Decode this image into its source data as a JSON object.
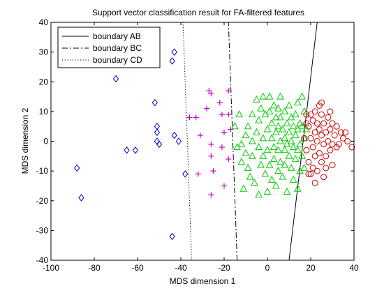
{
  "chart_data": {
    "type": "scatter",
    "title": "Support vector classification result for FA-filtered features",
    "xlabel": "MDS dimension 1",
    "ylabel": "MDS dimension 2",
    "xlim": [
      -100,
      40
    ],
    "ylim": [
      -40,
      40
    ],
    "xticks": [
      -100,
      -80,
      -60,
      -40,
      -20,
      0,
      20,
      40
    ],
    "yticks": [
      -40,
      -30,
      -20,
      -10,
      0,
      10,
      20,
      30,
      40
    ],
    "grid": false,
    "legend_position": "top-left",
    "lines": [
      {
        "name": "boundary AB",
        "style": "solid",
        "color": "#000000",
        "points": [
          [
            10,
            -40
          ],
          [
            23,
            40
          ]
        ]
      },
      {
        "name": "boundary BC",
        "style": "dashdot",
        "color": "#000000",
        "points": [
          [
            -14,
            -40
          ],
          [
            -18,
            40
          ]
        ]
      },
      {
        "name": "boundary CD",
        "style": "dotted",
        "color": "#000000",
        "points": [
          [
            -35,
            -40
          ],
          [
            -39,
            40
          ]
        ]
      }
    ],
    "series": [
      {
        "marker": "diamond",
        "color": "#0000cc",
        "points": [
          [
            -88,
            -9
          ],
          [
            -86,
            -19
          ],
          [
            -70,
            21
          ],
          [
            -65,
            -3
          ],
          [
            -61,
            -3
          ],
          [
            -52,
            13
          ],
          [
            -51,
            5
          ],
          [
            -51,
            3
          ],
          [
            -51,
            0
          ],
          [
            -50,
            -1
          ],
          [
            -44,
            27
          ],
          [
            -43,
            30
          ],
          [
            -43,
            2
          ],
          [
            -41,
            0
          ],
          [
            -38,
            -11
          ],
          [
            -44,
            -32
          ]
        ]
      },
      {
        "marker": "plus",
        "color": "#cc00cc",
        "points": [
          [
            -36,
            8
          ],
          [
            -33,
            8
          ],
          [
            -32,
            -11
          ],
          [
            -31,
            2
          ],
          [
            -27,
            17
          ],
          [
            -26,
            16
          ],
          [
            -28,
            11
          ],
          [
            -26,
            -1
          ],
          [
            -26,
            -5
          ],
          [
            -22,
            13
          ],
          [
            -21,
            9
          ],
          [
            -21,
            -2
          ],
          [
            -25,
            -10
          ],
          [
            -20,
            3
          ],
          [
            -18,
            17
          ],
          [
            -18,
            9
          ],
          [
            -18,
            -6
          ],
          [
            -26,
            -18
          ],
          [
            -20,
            -15
          ],
          [
            -17,
            4
          ]
        ]
      },
      {
        "marker": "triangle",
        "color": "#00cc00",
        "points": [
          [
            -13,
            9
          ],
          [
            -12,
            -1
          ],
          [
            -12,
            -7
          ],
          [
            -11,
            -16
          ],
          [
            -10,
            2
          ],
          [
            -10,
            -4
          ],
          [
            -9,
            5
          ],
          [
            -9,
            -9
          ],
          [
            -8,
            -12
          ],
          [
            -7,
            9
          ],
          [
            -7,
            0
          ],
          [
            -7,
            -5
          ],
          [
            -6,
            -14
          ],
          [
            -5,
            14
          ],
          [
            -5,
            3
          ],
          [
            -4,
            7
          ],
          [
            -4,
            -2
          ],
          [
            -4,
            -18
          ],
          [
            -3,
            11
          ],
          [
            -3,
            -8
          ],
          [
            -2,
            15
          ],
          [
            -2,
            1
          ],
          [
            -2,
            -5
          ],
          [
            -1,
            9
          ],
          [
            -1,
            -11
          ],
          [
            0,
            4
          ],
          [
            0,
            -3
          ],
          [
            0,
            -17
          ],
          [
            1,
            15
          ],
          [
            1,
            10
          ],
          [
            1,
            -8
          ],
          [
            2,
            6
          ],
          [
            2,
            1
          ],
          [
            2,
            -13
          ],
          [
            3,
            12
          ],
          [
            3,
            -2
          ],
          [
            3,
            -6
          ],
          [
            4,
            8
          ],
          [
            4,
            3
          ],
          [
            4,
            -15
          ],
          [
            5,
            11
          ],
          [
            5,
            5
          ],
          [
            5,
            -3
          ],
          [
            5,
            -10
          ],
          [
            6,
            15
          ],
          [
            6,
            8
          ],
          [
            6,
            0
          ],
          [
            6,
            -7
          ],
          [
            7,
            4
          ],
          [
            7,
            -12
          ],
          [
            8,
            10
          ],
          [
            8,
            1
          ],
          [
            8,
            -3
          ],
          [
            8,
            -8
          ],
          [
            9,
            6
          ],
          [
            9,
            -1
          ],
          [
            9,
            -17
          ],
          [
            10,
            12
          ],
          [
            10,
            3
          ],
          [
            10,
            -5
          ],
          [
            11,
            8
          ],
          [
            11,
            0
          ],
          [
            11,
            -9
          ],
          [
            12,
            5
          ],
          [
            12,
            -2
          ],
          [
            12,
            -13
          ],
          [
            13,
            9
          ],
          [
            13,
            2
          ],
          [
            13,
            -6
          ],
          [
            14,
            13
          ],
          [
            14,
            4
          ],
          [
            14,
            -3
          ],
          [
            15,
            6
          ],
          [
            15,
            -1
          ],
          [
            15,
            -10
          ],
          [
            16,
            15
          ],
          [
            16,
            5
          ],
          [
            16,
            -5
          ],
          [
            17,
            10
          ],
          [
            17,
            1
          ],
          [
            17,
            -9
          ],
          [
            18,
            4
          ],
          [
            14,
            -16
          ],
          [
            -15,
            5
          ],
          [
            -14,
            -2
          ]
        ]
      },
      {
        "marker": "circle",
        "color": "#cc0000",
        "points": [
          [
            18,
            9
          ],
          [
            18,
            -3
          ],
          [
            19,
            5
          ],
          [
            19,
            -7
          ],
          [
            20,
            1
          ],
          [
            20,
            -11
          ],
          [
            21,
            7
          ],
          [
            21,
            -2
          ],
          [
            21,
            -9
          ],
          [
            22,
            10
          ],
          [
            22,
            3
          ],
          [
            22,
            -5
          ],
          [
            23,
            6
          ],
          [
            23,
            0
          ],
          [
            23,
            -10
          ],
          [
            24,
            4
          ],
          [
            24,
            -4
          ],
          [
            25,
            9
          ],
          [
            25,
            2
          ],
          [
            25,
            -7
          ],
          [
            26,
            6
          ],
          [
            26,
            -1
          ],
          [
            26,
            -12
          ],
          [
            27,
            3
          ],
          [
            27,
            -5
          ],
          [
            28,
            8
          ],
          [
            28,
            0
          ],
          [
            29,
            4
          ],
          [
            29,
            -3
          ],
          [
            30,
            6
          ],
          [
            30,
            -1
          ],
          [
            31,
            2
          ],
          [
            32,
            5
          ],
          [
            32,
            -2
          ],
          [
            34,
            3
          ],
          [
            35,
            1
          ],
          [
            37,
            0
          ],
          [
            39,
            -2
          ],
          [
            19,
            -11
          ],
          [
            20,
            9
          ],
          [
            24,
            12
          ],
          [
            27,
            -9
          ],
          [
            29,
            10
          ],
          [
            33,
            -1
          ],
          [
            36,
            3
          ],
          [
            17,
            1
          ],
          [
            22,
            -14
          ],
          [
            30,
            -8
          ],
          [
            25,
            13
          ],
          [
            18,
            6
          ]
        ]
      }
    ]
  }
}
